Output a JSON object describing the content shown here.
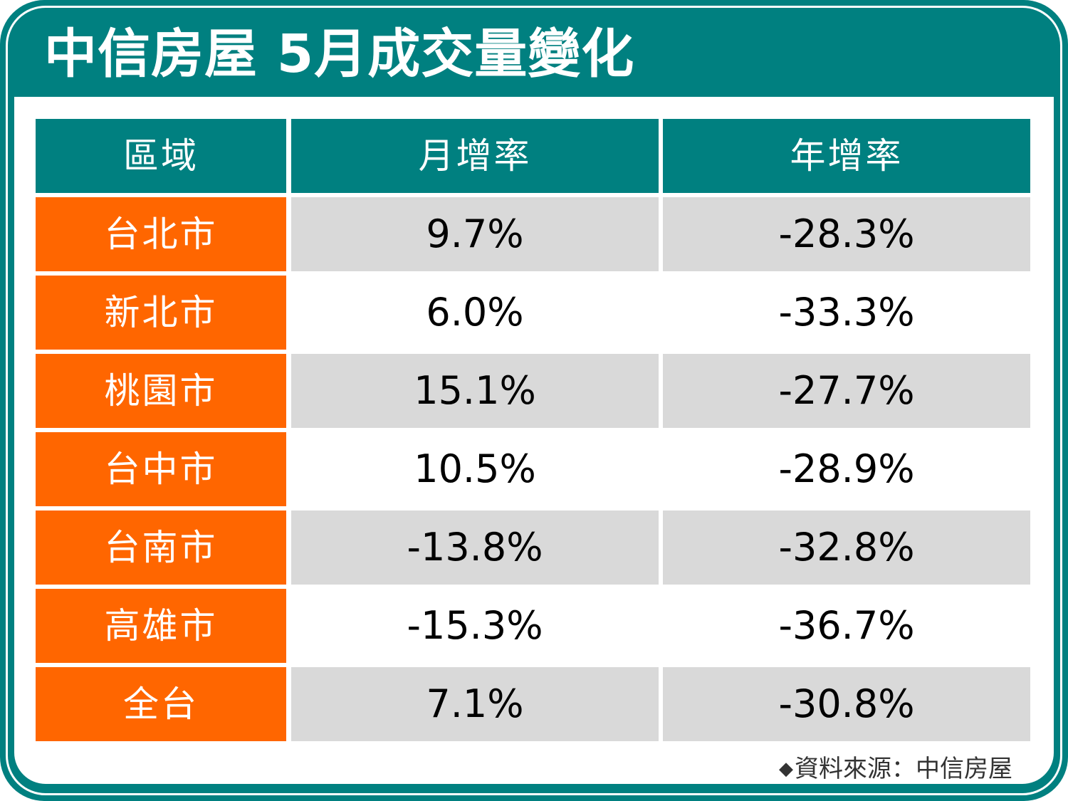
{
  "title": "中信房屋 5月成交量變化",
  "chart_data": {
    "type": "table",
    "title": "中信房屋 5月成交量變化",
    "columns": [
      "區域",
      "月增率",
      "年增率"
    ],
    "rows": [
      {
        "region": "台北市",
        "mom": "9.7%",
        "yoy": "-28.3%"
      },
      {
        "region": "新北市",
        "mom": "6.0%",
        "yoy": "-33.3%"
      },
      {
        "region": "桃園市",
        "mom": "15.1%",
        "yoy": "-27.7%"
      },
      {
        "region": "台中市",
        "mom": "10.5%",
        "yoy": "-28.9%"
      },
      {
        "region": "台南市",
        "mom": "-13.8%",
        "yoy": "-32.8%"
      },
      {
        "region": "高雄市",
        "mom": "-15.3%",
        "yoy": "-36.7%"
      },
      {
        "region": "全台",
        "mom": "7.1%",
        "yoy": "-30.8%"
      }
    ],
    "source": "資料來源：中信房屋"
  },
  "source_prefix": "◆",
  "colors": {
    "frame": "#008080",
    "header_bg": "#008080",
    "region_bg": "#ff6600",
    "shaded_row_bg": "#d9d9d9",
    "text": "#000000"
  },
  "icons": {
    "source_marker": "diamond-icon"
  }
}
